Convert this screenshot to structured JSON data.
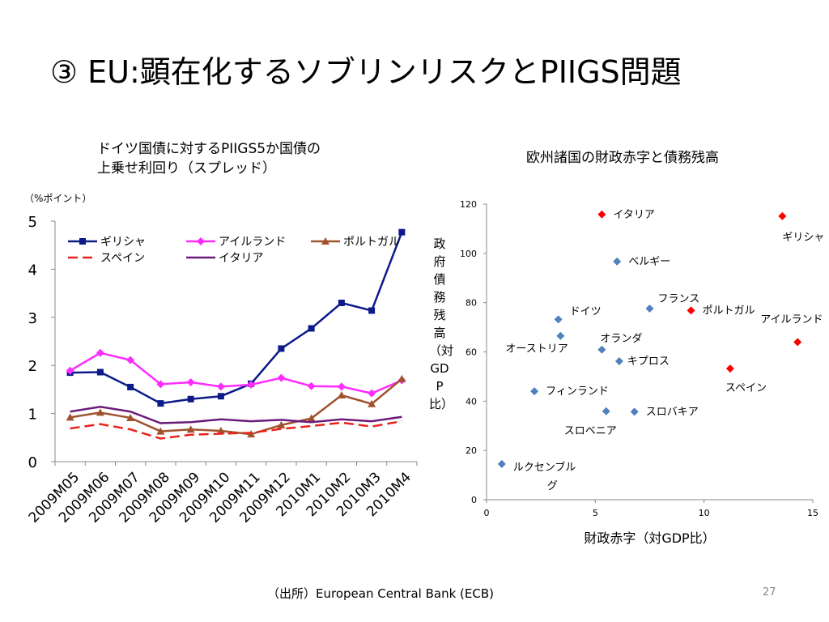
{
  "slide": {
    "title": "③ EU:顕在化するソブリンリスクとPIIGS問題",
    "source": "（出所）European Central Bank (ECB)",
    "page_number": "27"
  },
  "chart_data": [
    {
      "type": "line",
      "title_line1": "ドイツ国債に対するPIIGS5か国債の",
      "title_line2": "上乗せ利回り（スプレッド）",
      "unit_label": "（%ポイント）",
      "categories": [
        "2009M05",
        "2009M06",
        "2009M07",
        "2009M08",
        "2009M09",
        "2009M10",
        "2009M11",
        "2009M12",
        "2010M1",
        "2010M2",
        "2010M3",
        "2010M4"
      ],
      "ylim": [
        0,
        5
      ],
      "yticks": [
        0,
        1,
        2,
        3,
        4,
        5
      ],
      "legend_position": "top",
      "series": [
        {
          "name": "ギリシャ",
          "color": "#0c1a8a",
          "marker": "square",
          "dash": "none",
          "values": [
            1.85,
            1.86,
            1.55,
            1.21,
            1.3,
            1.36,
            1.62,
            2.35,
            2.77,
            3.3,
            3.14,
            4.77
          ]
        },
        {
          "name": "アイルランド",
          "color": "#ff2bff",
          "marker": "diamond",
          "dash": "none",
          "values": [
            1.89,
            2.26,
            2.11,
            1.61,
            1.65,
            1.56,
            1.6,
            1.74,
            1.57,
            1.56,
            1.42,
            1.69
          ]
        },
        {
          "name": "ポルトガル",
          "color": "#a0522d",
          "marker": "triangle",
          "dash": "none",
          "values": [
            0.92,
            1.02,
            0.91,
            0.63,
            0.67,
            0.64,
            0.57,
            0.76,
            0.9,
            1.38,
            1.2,
            1.72
          ]
        },
        {
          "name": "スペイン",
          "color": "#e8231c",
          "marker": "none",
          "dash": "dashed",
          "values": [
            0.69,
            0.78,
            0.67,
            0.48,
            0.56,
            0.58,
            0.6,
            0.68,
            0.74,
            0.81,
            0.73,
            0.84
          ]
        },
        {
          "name": "イタリア",
          "color": "#6a1b7a",
          "marker": "none",
          "dash": "none",
          "values": [
            1.04,
            1.14,
            1.04,
            0.8,
            0.82,
            0.88,
            0.84,
            0.87,
            0.82,
            0.88,
            0.84,
            0.93
          ]
        }
      ]
    },
    {
      "type": "scatter",
      "title": "欧州諸国の財政赤字と債務残高",
      "xlabel": "財政赤字（対GDP比）",
      "ylabel": "政府債務残高（対GDP比）",
      "xlim": [
        0,
        15
      ],
      "ylim": [
        0,
        120
      ],
      "xticks": [
        0,
        5,
        10,
        15
      ],
      "yticks": [
        0,
        20,
        40,
        60,
        80,
        100,
        120
      ],
      "points": [
        {
          "label": "イタリア",
          "x": 5.3,
          "y": 115.8,
          "highlight": true
        },
        {
          "label": "ギリシャ",
          "x": 13.6,
          "y": 115.1,
          "highlight": true
        },
        {
          "label": "ベルギー",
          "x": 6.0,
          "y": 96.7,
          "highlight": false
        },
        {
          "label": "フランス",
          "x": 7.5,
          "y": 77.6,
          "highlight": false
        },
        {
          "label": "ポルトガル",
          "x": 9.4,
          "y": 76.8,
          "highlight": true
        },
        {
          "label": "ドイツ",
          "x": 3.3,
          "y": 73.2,
          "highlight": false
        },
        {
          "label": "アイルランド",
          "x": 14.3,
          "y": 64.0,
          "highlight": true
        },
        {
          "label": "オランダ",
          "x": 5.3,
          "y": 60.9,
          "highlight": false
        },
        {
          "label": "オーストリア",
          "x": 3.4,
          "y": 66.5,
          "highlight": false
        },
        {
          "label": "キプロス",
          "x": 6.1,
          "y": 56.2,
          "highlight": false
        },
        {
          "label": "スペイン",
          "x": 11.2,
          "y": 53.2,
          "highlight": true
        },
        {
          "label": "フィンランド",
          "x": 2.2,
          "y": 44.0,
          "highlight": false
        },
        {
          "label": "スロベニア",
          "x": 5.5,
          "y": 35.9,
          "highlight": false
        },
        {
          "label": "スロバキア",
          "x": 6.8,
          "y": 35.7,
          "highlight": false
        },
        {
          "label": "ルクセンブルグ",
          "x": 0.7,
          "y": 14.5,
          "highlight": false
        }
      ]
    }
  ],
  "colors": {
    "scatter_normal": "#4f81bd",
    "scatter_highlight": "#ff0000",
    "axis": "#888888"
  }
}
